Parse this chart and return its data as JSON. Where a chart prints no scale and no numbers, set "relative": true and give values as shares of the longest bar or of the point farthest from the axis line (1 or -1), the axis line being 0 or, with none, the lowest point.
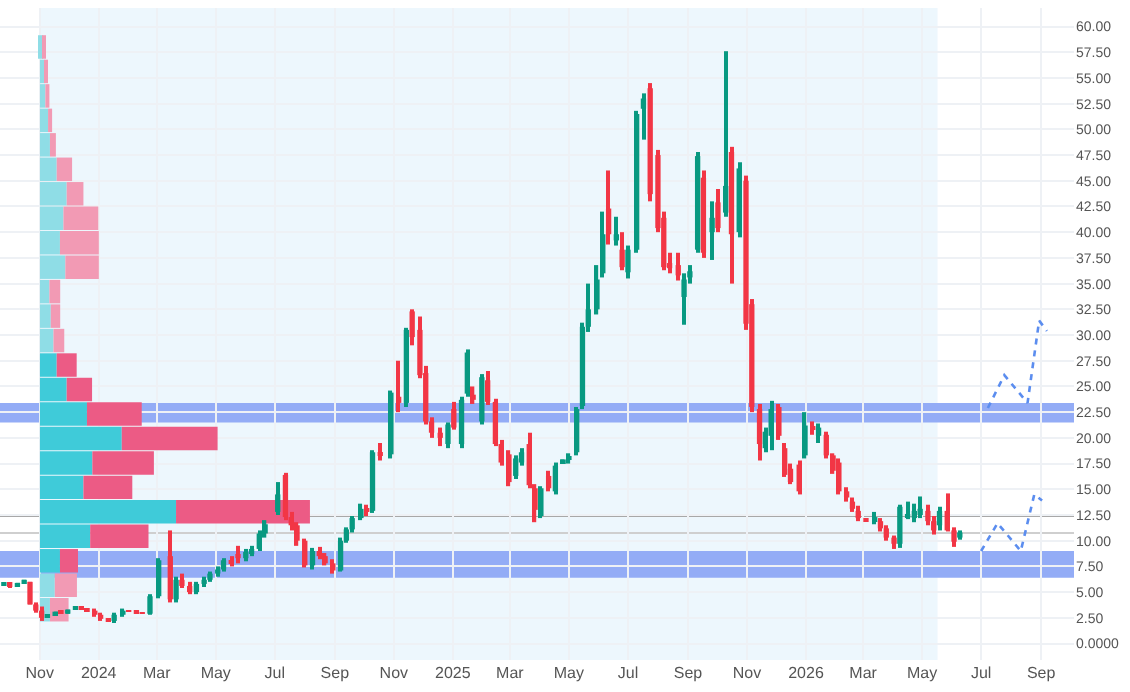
{
  "chart_data": [
    {
      "type": "candlestick",
      "x": [
        "2023-09-25",
        "2023-10-01",
        "2023-10-09",
        "2023-10-16",
        "2023-10-22",
        "2023-10-28",
        "2023-11-03",
        "2023-11-09",
        "2023-11-17",
        "2023-11-23",
        "2023-11-30",
        "2023-12-08",
        "2023-12-14",
        "2023-12-20",
        "2023-12-28",
        "2024-01-03",
        "2024-01-11",
        "2024-01-17",
        "2024-01-26",
        "2024-02-01",
        "2024-02-09",
        "2024-02-15",
        "2024-02-23",
        "2024-03-03",
        "2024-03-15",
        "2024-03-21",
        "2024-03-27",
        "2024-04-04",
        "2024-04-11",
        "2024-04-19",
        "2024-04-25",
        "2024-05-03",
        "2024-05-09",
        "2024-05-17",
        "2024-05-24",
        "2024-06-01",
        "2024-06-07",
        "2024-06-15",
        "2024-06-21",
        "2024-07-04",
        "2024-07-12",
        "2024-07-18",
        "2024-07-24",
        "2024-08-01",
        "2024-08-09",
        "2024-08-16",
        "2024-08-22",
        "2024-08-30",
        "2024-09-07",
        "2024-09-13",
        "2024-09-19",
        "2024-09-28",
        "2024-10-04",
        "2024-10-10",
        "2024-10-18",
        "2024-10-29",
        "2024-11-06",
        "2024-11-14",
        "2024-11-20",
        "2024-11-28",
        "2024-12-04",
        "2024-12-10",
        "2024-12-19",
        "2024-12-27",
        "2025-01-02",
        "2025-01-10",
        "2025-01-16",
        "2025-01-22",
        "2025-01-31",
        "2025-02-06",
        "2025-02-14",
        "2025-02-20",
        "2025-02-28",
        "2025-03-07",
        "2025-03-13",
        "2025-03-21",
        "2025-03-27",
        "2025-04-02",
        "2025-04-10",
        "2025-04-17",
        "2025-04-25",
        "2025-05-01",
        "2025-05-09",
        "2025-05-15",
        "2025-05-21",
        "2025-05-30",
        "2025-06-05",
        "2025-06-11",
        "2025-06-19",
        "2025-06-25",
        "2025-07-01",
        "2025-07-10",
        "2025-07-17",
        "2025-07-24",
        "2025-08-01",
        "2025-08-07",
        "2025-08-13",
        "2025-08-22",
        "2025-08-28",
        "2025-09-03",
        "2025-09-11",
        "2025-09-17",
        "2025-09-26",
        "2025-10-02",
        "2025-10-10",
        "2025-10-16",
        "2025-10-24",
        "2025-10-31",
        "2025-11-06",
        "2025-11-14",
        "2025-11-20",
        "2025-11-26",
        "2025-12-04",
        "2025-12-10",
        "2025-12-16",
        "2025-12-25",
        "2025-12-31",
        "2026-01-08",
        "2026-01-14",
        "2026-01-22",
        "2026-01-29",
        "2026-02-04",
        "2026-02-12",
        "2026-02-18",
        "2026-02-24",
        "2026-03-04",
        "2026-03-13",
        "2026-03-19",
        "2026-03-25",
        "2026-04-02",
        "2026-04-08",
        "2026-04-16",
        "2026-04-23",
        "2026-04-29",
        "2026-05-07",
        "2026-05-13",
        "2026-05-19",
        "2026-05-27",
        "2026-06-03",
        "2026-06-09"
      ],
      "ohlc": [
        [
          5.6,
          5.8,
          5.6,
          5.8
        ],
        [
          5.8,
          5.8,
          5.5,
          5.5
        ],
        [
          5.5,
          5.9,
          5.5,
          5.9
        ],
        [
          5.9,
          6.2,
          5.9,
          6.2
        ],
        [
          6,
          6,
          3.8,
          3.8
        ],
        [
          3.8,
          4,
          3,
          3.2
        ],
        [
          3.2,
          3.6,
          2.2,
          2.5
        ],
        [
          2.5,
          2.8,
          2.5,
          2.8
        ],
        [
          2.8,
          3.1,
          2.8,
          3.1
        ],
        [
          3.1,
          3.1,
          2.9,
          2.9
        ],
        [
          2.9,
          3.3,
          2.9,
          3.3
        ],
        [
          3.3,
          3.6,
          3.3,
          3.6
        ],
        [
          3.6,
          3.6,
          3.4,
          3.4
        ],
        [
          3.4,
          3.4,
          3.2,
          3.2
        ],
        [
          3.2,
          3.4,
          2.6,
          2.8
        ],
        [
          2.8,
          3,
          2.2,
          2.4
        ],
        [
          2.4,
          2.4,
          2.2,
          2.2
        ],
        [
          2.2,
          3,
          2,
          2.8
        ],
        [
          2.8,
          3.4,
          2.6,
          3.2
        ],
        [
          3.2,
          3.2,
          3.1,
          3.1
        ],
        [
          3.1,
          3.1,
          3,
          3
        ],
        [
          3,
          3,
          2.9,
          2.9
        ],
        [
          2.9,
          4.8,
          2.8,
          4.6
        ],
        [
          4.6,
          8.3,
          4.4,
          8.1
        ],
        [
          8.5,
          11,
          4,
          4.3
        ],
        [
          4.3,
          6.5,
          4,
          6.2
        ],
        [
          6.2,
          6.8,
          5.4,
          5.6
        ],
        [
          5.6,
          6,
          4.8,
          5
        ],
        [
          5,
          6,
          4.8,
          5.8
        ],
        [
          5.8,
          6.5,
          5.5,
          6.2
        ],
        [
          6.2,
          7,
          6,
          6.8
        ],
        [
          6.8,
          7.5,
          6.5,
          7.2
        ],
        [
          7.2,
          8.3,
          7,
          8.1
        ],
        [
          8.1,
          8.5,
          7.5,
          7.8
        ],
        [
          8.6,
          9.5,
          7.8,
          8.3
        ],
        [
          8.3,
          9.2,
          8,
          8.9
        ],
        [
          8.9,
          9.5,
          8.5,
          9.2
        ],
        [
          9.2,
          11,
          9,
          10.7
        ],
        [
          10.7,
          12,
          10.3,
          11.6
        ],
        [
          12.8,
          15.7,
          12.5,
          14.5
        ],
        [
          16.4,
          16.6,
          12,
          12.3
        ],
        [
          12.3,
          12.8,
          11,
          11.5
        ],
        [
          11.5,
          11.8,
          9.5,
          10
        ],
        [
          10,
          10.2,
          7.4,
          7.6
        ],
        [
          7.6,
          9.3,
          7.2,
          9
        ],
        [
          9,
          9.4,
          8.2,
          8.5
        ],
        [
          8.5,
          8.8,
          7.6,
          7.8
        ],
        [
          7.8,
          8.2,
          6.8,
          7.1
        ],
        [
          7.1,
          10.3,
          7,
          10
        ],
        [
          10,
          11.3,
          9.8,
          11.1
        ],
        [
          11.1,
          12.4,
          10.8,
          12.2
        ],
        [
          12.2,
          13.6,
          12,
          13.1
        ],
        [
          13.1,
          13.5,
          12.4,
          12.9
        ],
        [
          12.9,
          18.8,
          12.7,
          18.6
        ],
        [
          18.6,
          19.5,
          17.8,
          18.4
        ],
        [
          18.4,
          24.6,
          18,
          24.4
        ],
        [
          24,
          27.5,
          22.5,
          23.4
        ],
        [
          23.4,
          30.7,
          23,
          30.5
        ],
        [
          32.3,
          32.5,
          29,
          29.8
        ],
        [
          30.5,
          31.8,
          25.8,
          26.1
        ],
        [
          26.3,
          27,
          21.3,
          21.6
        ],
        [
          21.6,
          22,
          20,
          20.5
        ],
        [
          20.5,
          21,
          19.2,
          20
        ],
        [
          19.4,
          21.5,
          19,
          21.3
        ],
        [
          22.8,
          23.5,
          20.8,
          21
        ],
        [
          19.4,
          24,
          19,
          23.7
        ],
        [
          24.3,
          28.6,
          24,
          28.3
        ],
        [
          24.2,
          25,
          23.3,
          23.7
        ],
        [
          21.6,
          26.2,
          21.3,
          25.9
        ],
        [
          25.6,
          26.5,
          23.2,
          23.5
        ],
        [
          23.5,
          23.8,
          19.2,
          19.4
        ],
        [
          19.4,
          19.8,
          17.3,
          17.6
        ],
        [
          18.4,
          18.8,
          15.3,
          15.7
        ],
        [
          16.3,
          18.3,
          16,
          18
        ],
        [
          17.6,
          19,
          17.3,
          18.6
        ],
        [
          19.4,
          20.5,
          15.1,
          15.4
        ],
        [
          15.1,
          15.5,
          11.8,
          13
        ],
        [
          12.4,
          15.3,
          12.2,
          15.1
        ],
        [
          16.3,
          16.8,
          14.8,
          15.1
        ],
        [
          14.8,
          17.6,
          14.5,
          17.3
        ],
        [
          17.6,
          17.9,
          17.6,
          17.9
        ],
        [
          17.9,
          18.5,
          17.5,
          18.1
        ],
        [
          18.6,
          23,
          18.3,
          22.8
        ],
        [
          23.1,
          31.2,
          22.8,
          30.8
        ],
        [
          30.8,
          35,
          30.3,
          32.5
        ],
        [
          32.5,
          36.8,
          32,
          35.4
        ],
        [
          36,
          42,
          35.6,
          39.8
        ],
        [
          42.3,
          46,
          38.8,
          39.8
        ],
        [
          39.2,
          41.5,
          38.7,
          39.8
        ],
        [
          38.3,
          40,
          36.3,
          36.6
        ],
        [
          36.1,
          38.7,
          35.5,
          38.3
        ],
        [
          38.3,
          51.8,
          38,
          51.5
        ],
        [
          52,
          53.5,
          49,
          53
        ],
        [
          54,
          54.5,
          43,
          43.7
        ],
        [
          47.5,
          48,
          40,
          40.4
        ],
        [
          41.4,
          42,
          36.3,
          36.6
        ],
        [
          37,
          38,
          36,
          36.5
        ],
        [
          36.8,
          38,
          35.3,
          35.8
        ],
        [
          33.7,
          36,
          31,
          35.4
        ],
        [
          35.6,
          36.8,
          35,
          36.2
        ],
        [
          38.3,
          47.8,
          38,
          47.4
        ],
        [
          45.3,
          46,
          37.5,
          38
        ],
        [
          40,
          43,
          37.3,
          41.4
        ],
        [
          42.9,
          44.2,
          40,
          40.4
        ],
        [
          41.9,
          57.6,
          41.5,
          44.5
        ],
        [
          47.8,
          48.3,
          35,
          39.8
        ],
        [
          40,
          46.8,
          39.5,
          46.2
        ],
        [
          45,
          45.5,
          30.5,
          31.1
        ],
        [
          33,
          33.5,
          22.5,
          23
        ],
        [
          22.8,
          23.3,
          17.8,
          19.4
        ],
        [
          19,
          21,
          18.6,
          20.6
        ],
        [
          20.2,
          23.6,
          18.8,
          22.8
        ],
        [
          23,
          23.3,
          19.8,
          20.2
        ],
        [
          19,
          19.5,
          16.2,
          16.4
        ],
        [
          17,
          17.5,
          15.5,
          15.7
        ],
        [
          17.4,
          17.8,
          14.5,
          14.8
        ],
        [
          18.3,
          22.5,
          18,
          21.2
        ],
        [
          21,
          21.6,
          20.3,
          20.9
        ],
        [
          20.2,
          21.4,
          19.5,
          21
        ],
        [
          20.3,
          20.6,
          18,
          18.3
        ],
        [
          18.3,
          18.5,
          16.5,
          16.8
        ],
        [
          17.6,
          18,
          14.5,
          14.8
        ],
        [
          14.8,
          15.2,
          13.8,
          14.2
        ],
        [
          13.8,
          14.2,
          12.8,
          13.1
        ],
        [
          12.9,
          13.4,
          11.9,
          12.2
        ],
        [
          12.2,
          12.2,
          12,
          12
        ],
        [
          12,
          12.8,
          11.6,
          12.3
        ],
        [
          11.9,
          12.2,
          10.9,
          11.2
        ],
        [
          11.2,
          11.5,
          10,
          10.3
        ],
        [
          10.3,
          10.5,
          9.2,
          9.7
        ],
        [
          9.7,
          13.5,
          9.3,
          13.3
        ],
        [
          12.4,
          13.8,
          12.1,
          12.6
        ],
        [
          12.2,
          13.6,
          11.8,
          12.9
        ],
        [
          12.5,
          14.3,
          12.2,
          13.1
        ],
        [
          12.9,
          13.5,
          11.5,
          11.9
        ],
        [
          11.9,
          12.4,
          10.6,
          11
        ],
        [
          11.5,
          13.3,
          11,
          12.9
        ],
        [
          12.9,
          14.6,
          10.9,
          11
        ],
        [
          11,
          11.3,
          9.4,
          9.9
        ],
        [
          10.3,
          11,
          10.1,
          10.8
        ]
      ],
      "series": [
        {
          "type": "line",
          "color": "#5b8def",
          "line_style": "dotted",
          "x": [
            "2026-07-01",
            "2026-07-18",
            "2026-08-11",
            "2026-08-25",
            "2026-09-02"
          ],
          "values": [
            9.0,
            11.7,
            9.0,
            14.5,
            13.9
          ]
        },
        {
          "type": "line",
          "color": "#5b8def",
          "line_style": "dotted",
          "x": [
            "2026-07-08",
            "2026-07-25",
            "2026-08-18",
            "2026-08-30",
            "2026-09-07"
          ],
          "values": [
            22.9,
            26.1,
            23.4,
            31.4,
            30.4
          ]
        }
      ],
      "bands": [
        {
          "axis": "x",
          "from": "2023-11-01",
          "to": "2026-05-17",
          "color": "#edf7fd"
        },
        {
          "axis": "y",
          "from": 6.4,
          "to": 9.0,
          "color": "#93acf6"
        },
        {
          "axis": "y",
          "from": 21.5,
          "to": 23.4,
          "color": "#93acf6"
        }
      ],
      "ref_lines": [
        {
          "axis": "y",
          "value": 12.4,
          "color": "#a8a8a8"
        },
        {
          "axis": "y",
          "value": 10.75,
          "color": "#cfcfcf"
        }
      ],
      "xlim": [
        "2023-09-21",
        "2026-10-05"
      ],
      "xticks": [
        {
          "value": "2023-11-01",
          "label": "Nov"
        },
        {
          "value": "2024-01-01",
          "label": "2024"
        },
        {
          "value": "2024-03-01",
          "label": "Mar"
        },
        {
          "value": "2024-05-01",
          "label": "May"
        },
        {
          "value": "2024-07-01",
          "label": "Jul"
        },
        {
          "value": "2024-09-01",
          "label": "Sep"
        },
        {
          "value": "2024-11-01",
          "label": "Nov"
        },
        {
          "value": "2025-01-01",
          "label": "2025"
        },
        {
          "value": "2025-03-01",
          "label": "Mar"
        },
        {
          "value": "2025-05-01",
          "label": "May"
        },
        {
          "value": "2025-07-01",
          "label": "Jul"
        },
        {
          "value": "2025-09-01",
          "label": "Sep"
        },
        {
          "value": "2025-11-01",
          "label": "Nov"
        },
        {
          "value": "2026-01-01",
          "label": "2026"
        },
        {
          "value": "2026-03-01",
          "label": "Mar"
        },
        {
          "value": "2026-05-01",
          "label": "May"
        },
        {
          "value": "2026-07-01",
          "label": "Jul"
        },
        {
          "value": "2026-09-01",
          "label": "Sep"
        }
      ],
      "ylim": [
        -1.6,
        61.8
      ],
      "yticks": [
        {
          "value": 0,
          "label": "0.0000"
        },
        {
          "value": 2.5,
          "label": "2.50"
        },
        {
          "value": 5,
          "label": "5.00"
        },
        {
          "value": 7.5,
          "label": "7.50"
        },
        {
          "value": 10,
          "label": "10.00"
        },
        {
          "value": 12.5,
          "label": "12.50"
        },
        {
          "value": 15,
          "label": "15.00"
        },
        {
          "value": 17.5,
          "label": "17.50"
        },
        {
          "value": 20,
          "label": "20.00"
        },
        {
          "value": 22.5,
          "label": "22.50"
        },
        {
          "value": 25,
          "label": "25.00"
        },
        {
          "value": 27.5,
          "label": "27.50"
        },
        {
          "value": 30,
          "label": "30.00"
        },
        {
          "value": 32.5,
          "label": "32.50"
        },
        {
          "value": 35,
          "label": "35.00"
        },
        {
          "value": 37.5,
          "label": "37.50"
        },
        {
          "value": 40,
          "label": "40.00"
        },
        {
          "value": 42.5,
          "label": "42.50"
        },
        {
          "value": 45,
          "label": "45.00"
        },
        {
          "value": 47.5,
          "label": "47.50"
        },
        {
          "value": 50,
          "label": "50.00"
        },
        {
          "value": 52.5,
          "label": "52.50"
        },
        {
          "value": 55,
          "label": "55.00"
        },
        {
          "value": 57.5,
          "label": "57.50"
        },
        {
          "value": 60,
          "label": "60.00"
        }
      ],
      "grid": true
    },
    {
      "type": "bar",
      "orientation": "horizontal",
      "stacked": true,
      "relative": true,
      "categories": [
        null,
        null,
        null,
        null,
        null,
        null,
        null,
        null,
        null,
        null,
        null,
        null,
        null,
        null,
        null,
        null,
        null,
        null,
        null,
        null,
        null,
        null,
        null,
        null
      ],
      "series": [
        {
          "values": [
            0.012,
            0.017,
            0.02,
            0.03,
            0.037,
            0.062,
            0.099,
            0.087,
            0.074,
            0.094,
            0.035,
            0.04,
            0.05,
            0.062,
            0.099,
            0.174,
            0.303,
            0.194,
            0.161,
            0.504,
            0.186,
            0.074,
            0.055,
            0.037
          ],
          "colors": [
            "#8fdde6",
            "#8fdde6",
            "#8fdde6",
            "#8fdde6",
            "#8fdde6",
            "#8fdde6",
            "#8fdde6",
            "#8fdde6",
            "#8fdde6",
            "#8fdde6",
            "#8fdde6",
            "#8fdde6",
            "#8fdde6",
            "#3fcbd9",
            "#3fcbd9",
            "#3fcbd9",
            "#3fcbd9",
            "#3fcbd9",
            "#3fcbd9",
            "#3fcbd9",
            "#3fcbd9",
            "#3fcbd9",
            "#8fdde6",
            "#8fdde6"
          ]
        },
        {
          "values": [
            0.007,
            0.01,
            0.015,
            0.015,
            0.022,
            0.057,
            0.062,
            0.129,
            0.144,
            0.124,
            0.04,
            0.035,
            0.04,
            0.074,
            0.094,
            0.203,
            0.355,
            0.228,
            0.181,
            0.496,
            0.216,
            0.067,
            0.082,
            0.069
          ],
          "colors": [
            "#f29ab4",
            "#f29ab4",
            "#f29ab4",
            "#f29ab4",
            "#f29ab4",
            "#f29ab4",
            "#f29ab4",
            "#f29ab4",
            "#f29ab4",
            "#f29ab4",
            "#f29ab4",
            "#f29ab4",
            "#f29ab4",
            "#ec5b85",
            "#ec5b85",
            "#ec5b85",
            "#ec5b85",
            "#ec5b85",
            "#ec5b85",
            "#ec5b85",
            "#ec5b85",
            "#ec5b85",
            "#f29ab4",
            "#f29ab4"
          ]
        }
      ]
    }
  ]
}
